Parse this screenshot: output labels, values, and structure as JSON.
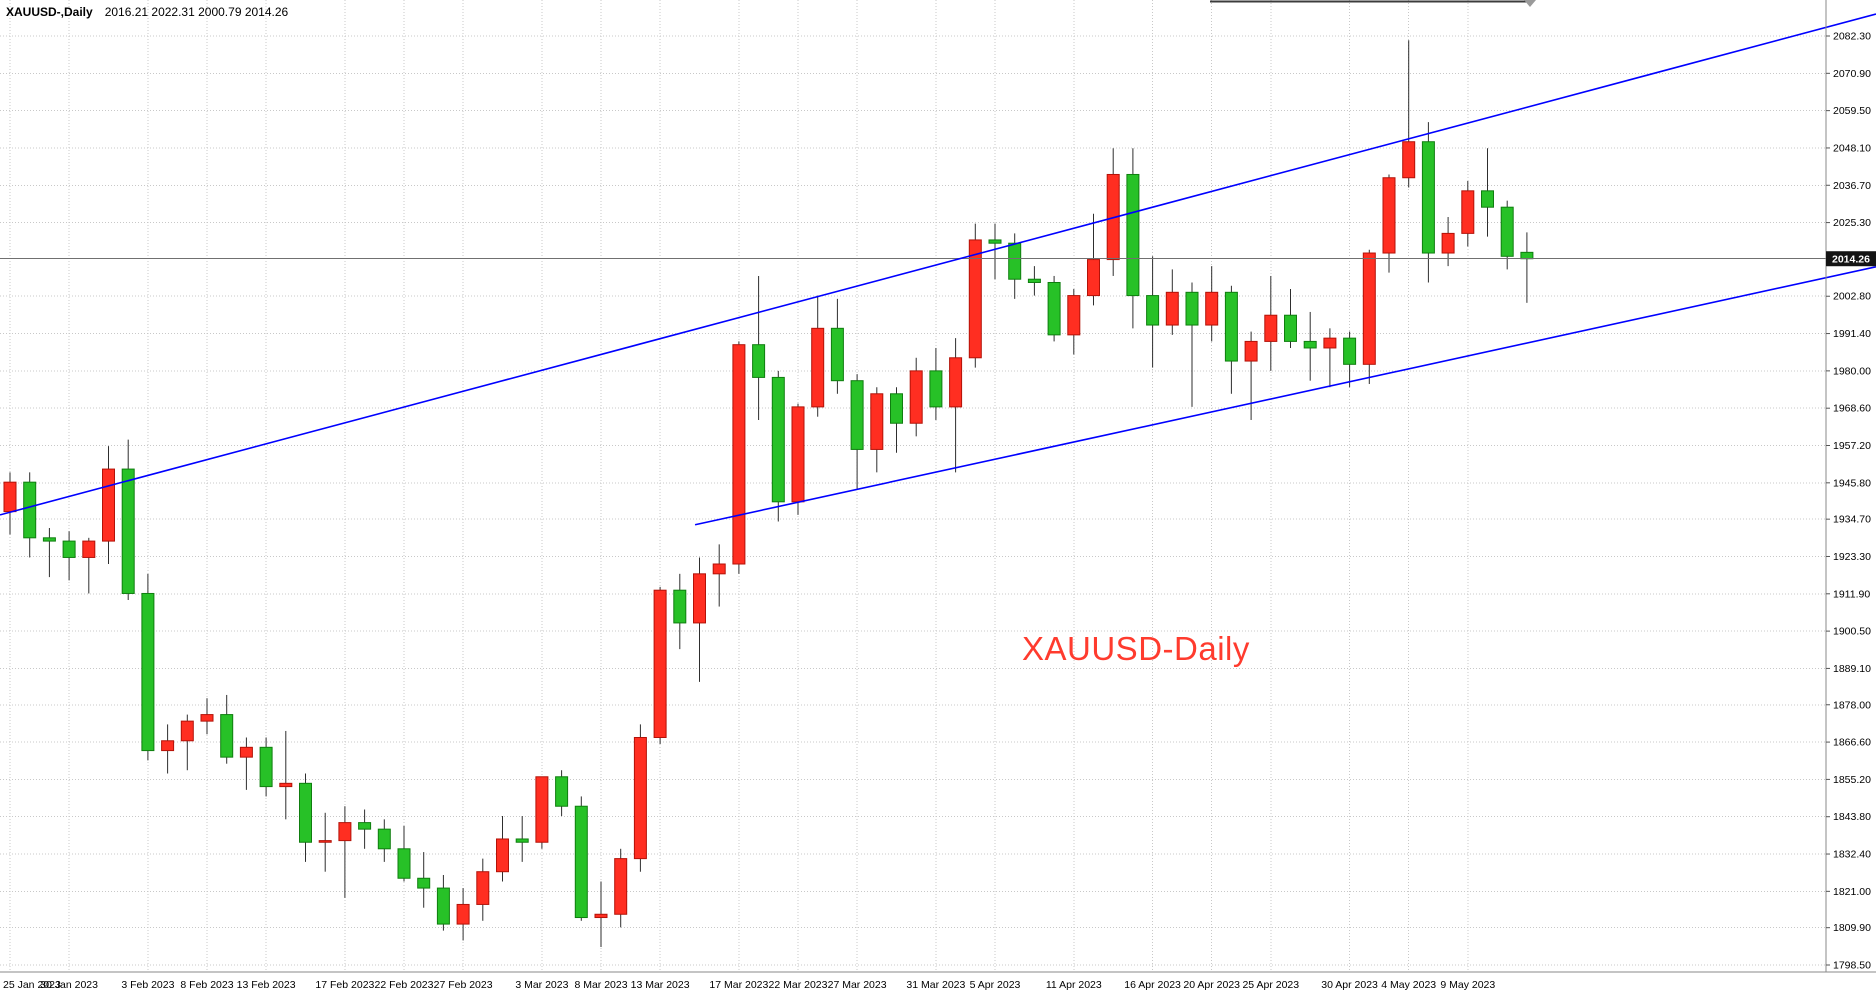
{
  "window": {
    "title_symbol": "XAUUSD-,Daily",
    "title_ohlc": "2016.21 2022.31 2000.79 2014.26"
  },
  "annotation": {
    "text": "XAUUSD-Daily",
    "color": "#ff3b2e"
  },
  "colors": {
    "background": "#ffffff",
    "grid": "#c8c8c8",
    "bull": "#ff2e21",
    "bull_border": "#b31208",
    "bear": "#27c127",
    "bear_border": "#0f7e0f",
    "wick": "#2e2e2e",
    "bid_line": "#707070",
    "marker_bg": "#141414",
    "marker_text": "#ffffff",
    "axis_text": "#000000",
    "separator": "#8a8a8a",
    "trendline": "#0000ff"
  },
  "chart_data": {
    "type": "candlestick",
    "symbol": "XAUUSD-",
    "timeframe": "Daily",
    "title": "XAUUSD-,Daily",
    "bid_price": 2014.26,
    "bid_label": "2014.26",
    "y_axis_range": [
      1798.5,
      2082.3
    ],
    "grid": "dotted",
    "up_candle_color_meaning": "red = bullish",
    "down_candle_color_meaning": "green = bearish",
    "y_axis_ticks": [
      "2082.30",
      "2070.90",
      "2059.50",
      "2048.10",
      "2036.70",
      "2025.30",
      "2002.80",
      "1991.40",
      "1980.00",
      "1968.60",
      "1957.20",
      "1945.80",
      "1934.70",
      "1923.30",
      "1911.90",
      "1900.50",
      "1889.10",
      "1878.00",
      "1866.60",
      "1855.20",
      "1843.80",
      "1832.40",
      "1821.00",
      "1809.90",
      "1798.50"
    ],
    "x_axis_labels": [
      "25 Jan 2023",
      "30 Jan 2023",
      "3 Feb 2023",
      "8 Feb 2023",
      "13 Feb 2023",
      "17 Feb 2023",
      "22 Feb 2023",
      "27 Feb 2023",
      "3 Mar 2023",
      "8 Mar 2023",
      "13 Mar 2023",
      "17 Mar 2023",
      "22 Mar 2023",
      "27 Mar 2023",
      "31 Mar 2023",
      "5 Apr 2023",
      "11 Apr 2023",
      "16 Apr 2023",
      "20 Apr 2023",
      "25 Apr 2023",
      "30 Apr 2023",
      "4 May 2023",
      "9 May 2023"
    ],
    "x_label_bar_index": [
      0,
      3,
      7,
      10,
      13,
      17,
      20,
      23,
      27,
      30,
      33,
      37,
      40,
      43,
      47,
      50,
      54,
      58,
      61,
      64,
      68,
      71,
      74
    ],
    "candle_format": [
      "date",
      "open",
      "high",
      "low",
      "close"
    ],
    "candles": [
      [
        "25 Jan 2023",
        1937.0,
        1949.0,
        1930.0,
        1946.0
      ],
      [
        "26 Jan 2023",
        1946.0,
        1949.0,
        1923.0,
        1929.0
      ],
      [
        "27 Jan 2023",
        1929.0,
        1932.0,
        1917.0,
        1928.0
      ],
      [
        "30 Jan 2023",
        1928.0,
        1931.0,
        1916.0,
        1923.0
      ],
      [
        "31 Jan 2023",
        1923.0,
        1929.0,
        1912.0,
        1928.0
      ],
      [
        "1 Feb 2023",
        1928.0,
        1957.0,
        1921.0,
        1950.0
      ],
      [
        "2 Feb 2023",
        1950.0,
        1959.0,
        1910.0,
        1912.0
      ],
      [
        "3 Feb 2023",
        1912.0,
        1918.0,
        1861.0,
        1864.0
      ],
      [
        "6 Feb 2023",
        1864.0,
        1872.0,
        1857.0,
        1867.0
      ],
      [
        "7 Feb 2023",
        1867.0,
        1875.0,
        1858.0,
        1873.0
      ],
      [
        "8 Feb 2023",
        1873.0,
        1880.0,
        1869.0,
        1875.0
      ],
      [
        "9 Feb 2023",
        1875.0,
        1881.0,
        1860.0,
        1862.0
      ],
      [
        "10 Feb 2023",
        1862.0,
        1868.0,
        1852.0,
        1865.0
      ],
      [
        "13 Feb 2023",
        1865.0,
        1868.0,
        1850.0,
        1853.0
      ],
      [
        "14 Feb 2023",
        1853.0,
        1870.0,
        1843.0,
        1854.0
      ],
      [
        "15 Feb 2023",
        1854.0,
        1857.0,
        1830.0,
        1836.0
      ],
      [
        "16 Feb 2023",
        1836.0,
        1845.0,
        1827.0,
        1836.5
      ],
      [
        "17 Feb 2023",
        1836.5,
        1847.0,
        1819.0,
        1842.0
      ],
      [
        "20 Feb 2023",
        1842.0,
        1846.0,
        1834.0,
        1840.0
      ],
      [
        "21 Feb 2023",
        1840.0,
        1843.0,
        1830.0,
        1834.0
      ],
      [
        "22 Feb 2023",
        1834.0,
        1841.0,
        1824.0,
        1825.0
      ],
      [
        "23 Feb 2023",
        1825.0,
        1833.0,
        1816.0,
        1822.0
      ],
      [
        "24 Feb 2023",
        1822.0,
        1826.0,
        1809.0,
        1811.0
      ],
      [
        "27 Feb 2023",
        1811.0,
        1822.0,
        1806.0,
        1817.0
      ],
      [
        "28 Feb 2023",
        1817.0,
        1831.0,
        1812.0,
        1827.0
      ],
      [
        "1 Mar 2023",
        1827.0,
        1844.0,
        1824.0,
        1837.0
      ],
      [
        "2 Mar 2023",
        1837.0,
        1844.0,
        1830.0,
        1836.0
      ],
      [
        "3 Mar 2023",
        1836.0,
        1856.0,
        1834.0,
        1856.0
      ],
      [
        "6 Mar 2023",
        1856.0,
        1858.0,
        1844.0,
        1847.0
      ],
      [
        "7 Mar 2023",
        1847.0,
        1850.0,
        1812.0,
        1813.0
      ],
      [
        "8 Mar 2023",
        1813.0,
        1824.0,
        1804.0,
        1814.0
      ],
      [
        "9 Mar 2023",
        1814.0,
        1834.0,
        1810.0,
        1831.0
      ],
      [
        "10 Mar 2023",
        1831.0,
        1872.0,
        1827.0,
        1868.0
      ],
      [
        "13 Mar 2023",
        1868.0,
        1914.0,
        1866.0,
        1913.0
      ],
      [
        "14 Mar 2023",
        1913.0,
        1918.0,
        1895.0,
        1903.0
      ],
      [
        "15 Mar 2023",
        1903.0,
        1923.0,
        1885.0,
        1918.0
      ],
      [
        "16 Mar 2023",
        1918.0,
        1927.0,
        1908.0,
        1921.0
      ],
      [
        "17 Mar 2023",
        1921.0,
        1989.0,
        1918.0,
        1988.0
      ],
      [
        "20 Mar 2023",
        1988.0,
        2009.0,
        1965.0,
        1978.0
      ],
      [
        "21 Mar 2023",
        1978.0,
        1980.0,
        1934.0,
        1940.0
      ],
      [
        "22 Mar 2023",
        1940.0,
        1970.0,
        1936.0,
        1969.0
      ],
      [
        "23 Mar 2023",
        1969.0,
        2003.0,
        1966.0,
        1993.0
      ],
      [
        "24 Mar 2023",
        1993.0,
        2002.0,
        1973.0,
        1977.0
      ],
      [
        "27 Mar 2023",
        1977.0,
        1979.0,
        1944.0,
        1956.0
      ],
      [
        "28 Mar 2023",
        1956.0,
        1975.0,
        1949.0,
        1973.0
      ],
      [
        "29 Mar 2023",
        1973.0,
        1975.0,
        1955.0,
        1964.0
      ],
      [
        "30 Mar 2023",
        1964.0,
        1984.0,
        1960.0,
        1980.0
      ],
      [
        "31 Mar 2023",
        1980.0,
        1987.0,
        1965.0,
        1969.0
      ],
      [
        "3 Apr 2023",
        1969.0,
        1990.0,
        1949.0,
        1984.0
      ],
      [
        "4 Apr 2023",
        1984.0,
        2025.0,
        1981.0,
        2020.0
      ],
      [
        "5 Apr 2023",
        2020.0,
        2025.0,
        2008.0,
        2019.0
      ],
      [
        "6 Apr 2023",
        2019.0,
        2022.0,
        2002.0,
        2008.0
      ],
      [
        "7 Apr 2023",
        2008.0,
        2012.0,
        2003.0,
        2007.0
      ],
      [
        "10 Apr 2023",
        2007.0,
        2009.0,
        1989.0,
        1991.0
      ],
      [
        "11 Apr 2023",
        1991.0,
        2005.0,
        1985.0,
        2003.0
      ],
      [
        "12 Apr 2023",
        2003.0,
        2028.0,
        2000.0,
        2014.0
      ],
      [
        "13 Apr 2023",
        2014.0,
        2048.0,
        2009.0,
        2040.0
      ],
      [
        "14 Apr 2023",
        2040.0,
        2048.0,
        1993.0,
        2003.0
      ],
      [
        "17 Apr 2023",
        2003.0,
        2015.0,
        1981.0,
        1994.0
      ],
      [
        "18 Apr 2023",
        1994.0,
        2011.0,
        1991.0,
        2004.0
      ],
      [
        "19 Apr 2023",
        2004.0,
        2007.0,
        1969.0,
        1994.0
      ],
      [
        "20 Apr 2023",
        1994.0,
        2012.0,
        1989.0,
        2004.0
      ],
      [
        "21 Apr 2023",
        2004.0,
        2006.0,
        1973.0,
        1983.0
      ],
      [
        "24 Apr 2023",
        1983.0,
        1992.0,
        1965.0,
        1989.0
      ],
      [
        "25 Apr 2023",
        1989.0,
        2009.0,
        1980.0,
        1997.0
      ],
      [
        "26 Apr 2023",
        1997.0,
        2005.0,
        1987.0,
        1989.0
      ],
      [
        "27 Apr 2023",
        1989.0,
        1998.0,
        1977.0,
        1987.0
      ],
      [
        "28 Apr 2023",
        1987.0,
        1993.0,
        1975.0,
        1990.0
      ],
      [
        "1 May 2023",
        1990.0,
        1992.0,
        1975.0,
        1982.0
      ],
      [
        "2 May 2023",
        1982.0,
        2017.0,
        1976.0,
        2016.0
      ],
      [
        "3 May 2023",
        2016.0,
        2040.0,
        2010.0,
        2039.0
      ],
      [
        "4 May 2023",
        2039.0,
        2081.0,
        2036.0,
        2050.0
      ],
      [
        "5 May 2023",
        2050.0,
        2056.0,
        2007.0,
        2016.0
      ],
      [
        "8 May 2023",
        2016.0,
        2027.0,
        2012.0,
        2022.0
      ],
      [
        "9 May 2023",
        2022.0,
        2038.0,
        2018.0,
        2035.0
      ],
      [
        "10 May 2023",
        2035.0,
        2048.0,
        2021.0,
        2030.0
      ],
      [
        "11 May 2023",
        2030.0,
        2032.0,
        2011.0,
        2015.0
      ],
      [
        "12 May 2023",
        2016.21,
        2022.31,
        2000.79,
        2014.26
      ]
    ],
    "trendlines": [
      {
        "name": "channel-upper-trendline",
        "color": "#0000ff",
        "x1_frac": 0.0,
        "price1": 1936.0,
        "x2_frac": 1.0,
        "price2": 2089.0
      },
      {
        "name": "channel-lower-trendline",
        "color": "#0000ff",
        "x1_frac": 0.3705,
        "price1": 1933.0,
        "x2_frac": 1.0,
        "price2": 2011.8
      }
    ]
  }
}
